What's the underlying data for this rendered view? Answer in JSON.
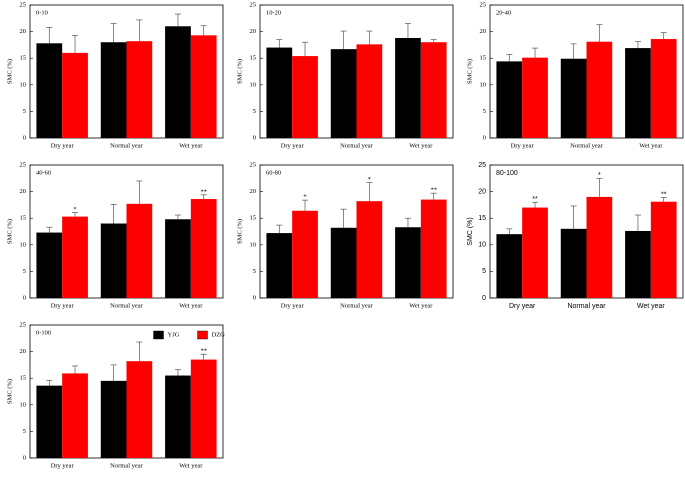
{
  "chart_data": [
    {
      "type": "bar",
      "title": "0-10",
      "ylabel": "SMC (%)",
      "categories": [
        "Dry year",
        "Normal year",
        "Wet year"
      ],
      "ylim": [
        0,
        25
      ],
      "yticks": [
        0,
        5,
        10,
        15,
        20,
        25
      ],
      "series": [
        {
          "color": "#000000",
          "values": [
            17.8,
            18,
            21
          ],
          "errors": [
            3,
            3.5,
            2.3
          ]
        },
        {
          "color": "#ff0000",
          "values": [
            16,
            18.2,
            19.3
          ],
          "errors": [
            3.3,
            4,
            1.8
          ]
        }
      ]
    },
    {
      "type": "bar",
      "title": "10-20",
      "ylabel": "SMC (%)",
      "categories": [
        "Dry year",
        "Normal year",
        "Wet year"
      ],
      "ylim": [
        0,
        25
      ],
      "yticks": [
        0,
        5,
        10,
        15,
        20,
        25
      ],
      "series": [
        {
          "color": "#000000",
          "values": [
            17,
            16.7,
            18.8
          ],
          "errors": [
            1.5,
            3.4,
            2.7
          ]
        },
        {
          "color": "#ff0000",
          "values": [
            15.4,
            17.6,
            18
          ],
          "errors": [
            2.6,
            2.5,
            0.5
          ]
        }
      ]
    },
    {
      "type": "bar",
      "title": "20-40",
      "ylabel": "SMC (%)",
      "categories": [
        "Dry year",
        "Normal year",
        "Wet year"
      ],
      "ylim": [
        0,
        25
      ],
      "yticks": [
        0,
        5,
        10,
        15,
        20,
        25
      ],
      "series": [
        {
          "color": "#000000",
          "values": [
            14.4,
            14.9,
            16.9
          ],
          "errors": [
            1.3,
            2.8,
            1.2
          ]
        },
        {
          "color": "#ff0000",
          "values": [
            15.1,
            18.1,
            18.6
          ],
          "errors": [
            1.8,
            3.2,
            1.2
          ]
        }
      ]
    },
    {
      "type": "bar",
      "title": "40-60",
      "ylabel": "SMC (%)",
      "categories": [
        "Dry year",
        "Normal year",
        "Wet year"
      ],
      "ylim": [
        0,
        25
      ],
      "yticks": [
        0,
        5,
        10,
        15,
        20,
        25
      ],
      "series": [
        {
          "color": "#000000",
          "values": [
            12.3,
            14,
            14.8
          ],
          "errors": [
            1,
            3.6,
            0.8
          ]
        },
        {
          "color": "#ff0000",
          "values": [
            15.3,
            17.7,
            18.6
          ],
          "errors": [
            0.8,
            4.3,
            0.8
          ],
          "significance": [
            "*",
            null,
            "**"
          ]
        }
      ]
    },
    {
      "type": "bar",
      "title": "60-80",
      "ylabel": "SMC (%)",
      "categories": [
        "Dry year",
        "Normal year",
        "Wet year"
      ],
      "ylim": [
        0,
        25
      ],
      "yticks": [
        0,
        5,
        10,
        15,
        20,
        25
      ],
      "series": [
        {
          "color": "#000000",
          "values": [
            12.2,
            13.2,
            13.3
          ],
          "errors": [
            1.5,
            3.5,
            1.7
          ]
        },
        {
          "color": "#ff0000",
          "values": [
            16.4,
            18.2,
            18.5
          ],
          "errors": [
            2,
            3.5,
            1.2
          ],
          "significance": [
            "*",
            "*",
            "**"
          ]
        }
      ]
    },
    {
      "type": "bar",
      "title": "80-100",
      "ylabel": "SMC (%)",
      "categories": [
        "Dry year",
        "Normal year",
        "Wet year"
      ],
      "ylim": [
        0,
        25
      ],
      "yticks": [
        0,
        5,
        10,
        15,
        20,
        25
      ],
      "series": [
        {
          "color": "#000000",
          "values": [
            12,
            13,
            12.6
          ],
          "errors": [
            1,
            4.3,
            3
          ]
        },
        {
          "color": "#ff0000",
          "values": [
            17,
            19,
            18.1
          ],
          "errors": [
            1,
            3.5,
            0.8
          ],
          "significance": [
            "**",
            "*",
            "**"
          ]
        }
      ]
    },
    {
      "type": "bar",
      "title": "0-100",
      "ylabel": "SMC (%)",
      "categories": [
        "Dry year",
        "Normal year",
        "Wet year"
      ],
      "ylim": [
        0,
        25
      ],
      "yticks": [
        0,
        5,
        10,
        15,
        20,
        25
      ],
      "legend": "top",
      "series": [
        {
          "name": "YJG",
          "color": "#000000",
          "values": [
            13.6,
            14.5,
            15.5
          ],
          "errors": [
            1,
            3,
            1.1
          ]
        },
        {
          "name": "DZG",
          "color": "#ff0000",
          "values": [
            15.9,
            18.2,
            18.5
          ],
          "errors": [
            1.4,
            3.6,
            1
          ],
          "significance": [
            null,
            null,
            "**"
          ]
        }
      ]
    }
  ]
}
